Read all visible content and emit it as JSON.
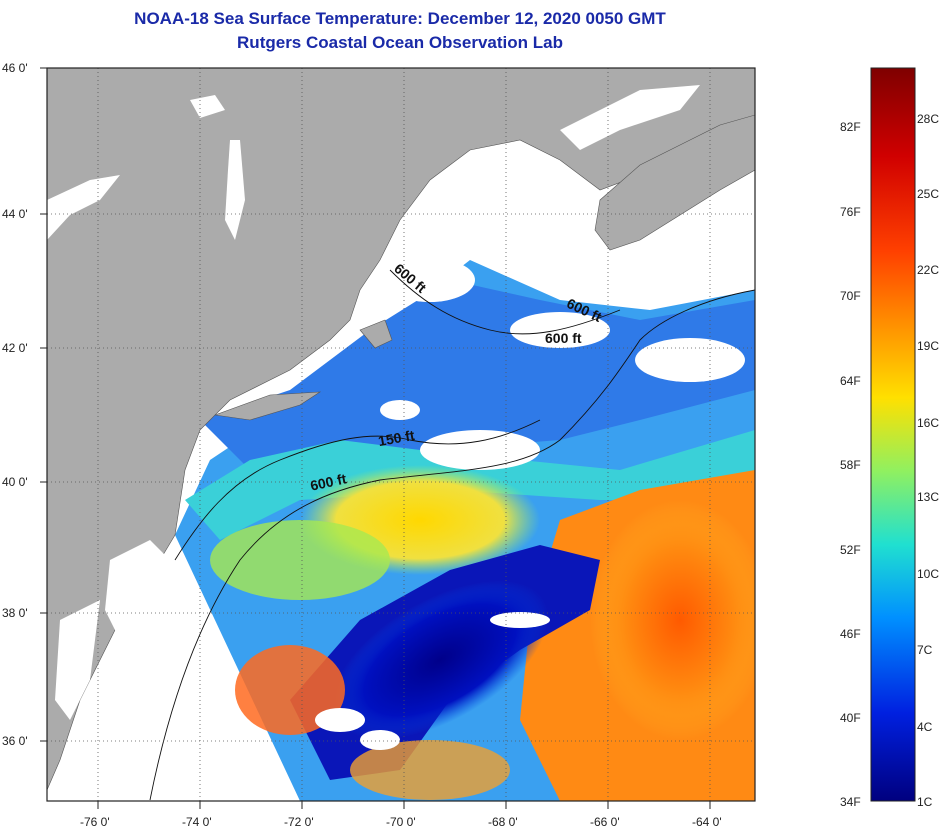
{
  "header": {
    "title": "NOAA-18 Sea Surface Temperature:  December 12, 2020 0050 GMT",
    "subtitle": "Rutgers Coastal Ocean Observation Lab"
  },
  "axes": {
    "x_ticks": [
      "-76 0'",
      "-74 0'",
      "-72 0'",
      "-70 0'",
      "-68 0'",
      "-66 0'",
      "-64 0'"
    ],
    "y_ticks": [
      "46 0'",
      "44 0'",
      "42 0'",
      "40 0'",
      "38 0'",
      "36 0'"
    ]
  },
  "contours": {
    "labels": [
      "600 ft",
      "600 ft",
      "600 ft",
      "150 ft",
      "600 ft"
    ]
  },
  "colorbar": {
    "fahrenheit": [
      "82F",
      "76F",
      "70F",
      "64F",
      "58F",
      "52F",
      "46F",
      "40F",
      "34F"
    ],
    "celsius": [
      "28C",
      "25C",
      "22C",
      "19C",
      "16C",
      "13C",
      "10C",
      "7C",
      "4C",
      "1C"
    ]
  },
  "colors": {
    "land": "#ababab",
    "no_data": "#ffffff",
    "title": "#1a2aa8",
    "cold": "#00007f",
    "warm": "#ff5a00"
  }
}
